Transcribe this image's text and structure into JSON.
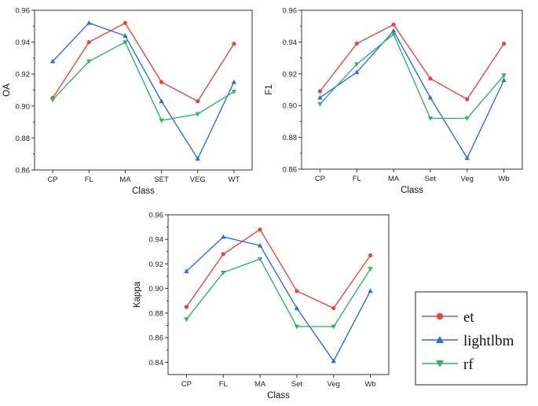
{
  "series_styles": [
    {
      "name": "et",
      "color": "#e64545",
      "marker": "circle"
    },
    {
      "name": "lightlbm",
      "color": "#2f6fd1",
      "marker": "triangle-up"
    },
    {
      "name": "rf",
      "color": "#33b26b",
      "marker": "triangle-down"
    }
  ],
  "legend": {
    "labels": [
      "et",
      "lightlbm",
      "rf"
    ]
  },
  "chart_data": [
    {
      "type": "line",
      "title": "",
      "xlabel": "Class",
      "ylabel": "OA",
      "categories": [
        "CP",
        "FL",
        "MA",
        "SET",
        "VEG",
        "WT"
      ],
      "ylim": [
        0.86,
        0.96
      ],
      "yticks": [
        "0.86",
        "0.88",
        "0.90",
        "0.92",
        "0.94",
        "0.96"
      ],
      "series": [
        {
          "name": "et",
          "values": [
            0.905,
            0.94,
            0.952,
            0.915,
            0.903,
            0.939
          ]
        },
        {
          "name": "lightlbm",
          "values": [
            0.928,
            0.952,
            0.944,
            0.903,
            0.867,
            0.915
          ]
        },
        {
          "name": "rf",
          "values": [
            0.904,
            0.928,
            0.94,
            0.891,
            0.895,
            0.909
          ]
        }
      ]
    },
    {
      "type": "line",
      "title": "",
      "xlabel": "Class",
      "ylabel": "F1",
      "categories": [
        "CP",
        "FL",
        "MA",
        "Set",
        "Veg",
        "Wb"
      ],
      "ylim": [
        0.86,
        0.96
      ],
      "yticks": [
        "0.86",
        "0.88",
        "0.90",
        "0.92",
        "0.94",
        "0.96"
      ],
      "series": [
        {
          "name": "et",
          "values": [
            0.909,
            0.939,
            0.951,
            0.917,
            0.904,
            0.939
          ]
        },
        {
          "name": "lightlbm",
          "values": [
            0.905,
            0.921,
            0.947,
            0.905,
            0.867,
            0.916
          ]
        },
        {
          "name": "rf",
          "values": [
            0.901,
            0.926,
            0.945,
            0.892,
            0.892,
            0.919
          ]
        }
      ]
    },
    {
      "type": "line",
      "title": "",
      "xlabel": "Class",
      "ylabel": "Kappa",
      "categories": [
        "CP",
        "FL",
        "MA",
        "Set",
        "Veg",
        "Wb"
      ],
      "ylim": [
        0.83,
        0.96
      ],
      "yticks": [
        "0.84",
        "0.86",
        "0.88",
        "0.90",
        "0.92",
        "0.94",
        "0.96"
      ],
      "series": [
        {
          "name": "et",
          "values": [
            0.885,
            0.928,
            0.948,
            0.898,
            0.884,
            0.927
          ]
        },
        {
          "name": "lightlbm",
          "values": [
            0.914,
            0.942,
            0.935,
            0.884,
            0.841,
            0.898
          ]
        },
        {
          "name": "rf",
          "values": [
            0.875,
            0.913,
            0.924,
            0.869,
            0.869,
            0.916
          ]
        }
      ]
    }
  ]
}
